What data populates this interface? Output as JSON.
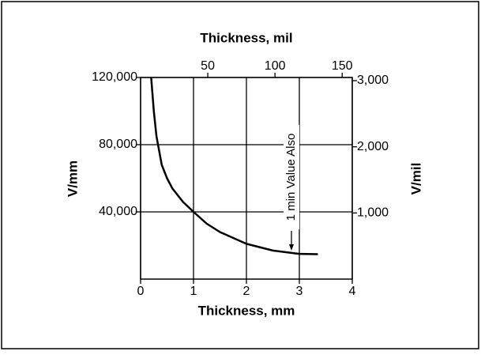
{
  "chart_data": {
    "type": "line",
    "xlabel": "Thickness, mm",
    "ylabel": "V/mm",
    "x2label": "Thickness, mil",
    "y2label": "V/mil",
    "annotation": "1 min Value Also",
    "series": [
      {
        "color": "#000000",
        "x": [
          0.2,
          0.25,
          0.3,
          0.4,
          0.5,
          0.6,
          0.8,
          1.0,
          1.25,
          1.5,
          2.0,
          2.5,
          3.0,
          3.35
        ],
        "values": [
          120000,
          100000,
          85000,
          68000,
          60000,
          54000,
          46000,
          40000,
          33000,
          28000,
          21000,
          17000,
          15000,
          14800
        ]
      }
    ],
    "xlim": [
      0,
      4
    ],
    "xticks": [
      0,
      1,
      2,
      3,
      4
    ],
    "ylim": [
      0,
      120000
    ],
    "yticks": [
      {
        "value": 40000,
        "label": "40,000"
      },
      {
        "value": 80000,
        "label": "80,000"
      },
      {
        "value": 120000,
        "label": "120,000"
      }
    ],
    "x2lim": [
      0,
      157.5
    ],
    "x2ticks": [
      50,
      100,
      150
    ],
    "y2lim": [
      0,
      3048
    ],
    "y2ticks": [
      {
        "value": 1000,
        "label": "1,000"
      },
      {
        "value": 2000,
        "label": "2,000"
      },
      {
        "value": 3000,
        "label": "3,000"
      }
    ],
    "grid": true
  }
}
